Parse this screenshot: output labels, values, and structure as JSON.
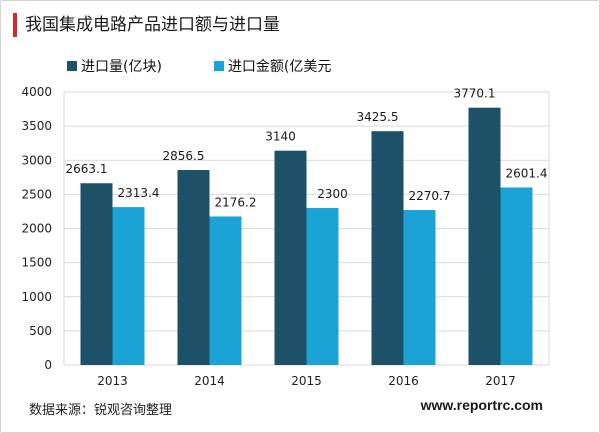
{
  "header": {
    "title": "我国集成电路产品进口额与进口量"
  },
  "colors": {
    "accent": "#d9262a",
    "series1": "#1d5167",
    "series2": "#1ba3d6",
    "grid": "#d9d9d9"
  },
  "footer": {
    "source": "数据来源：锐观咨询整理",
    "website": "www.reportrc.com"
  },
  "chart_data": {
    "type": "bar",
    "title": "我国集成电路产品进口额与进口量",
    "categories": [
      "2013",
      "2014",
      "2015",
      "2016",
      "2017"
    ],
    "series": [
      {
        "name": "进口量(亿块)",
        "values": [
          2663.1,
          2856.5,
          3140,
          3425.5,
          3770.1
        ],
        "labels": [
          "2663.1",
          "2856.5",
          "3140",
          "3425.5",
          "3770.1"
        ]
      },
      {
        "name": "进口金额(亿美元",
        "values": [
          2313.4,
          2176.2,
          2300,
          2270.7,
          2601.4
        ],
        "labels": [
          "2313.4",
          "2176.2",
          "2300",
          "2270.7",
          "2601.4"
        ]
      }
    ],
    "ylim": [
      0,
      4000
    ],
    "yticks": [
      "0",
      "500",
      "1000",
      "1500",
      "2000",
      "2500",
      "3000",
      "3500",
      "4000"
    ],
    "grid": true,
    "legend_position": "top-left"
  }
}
